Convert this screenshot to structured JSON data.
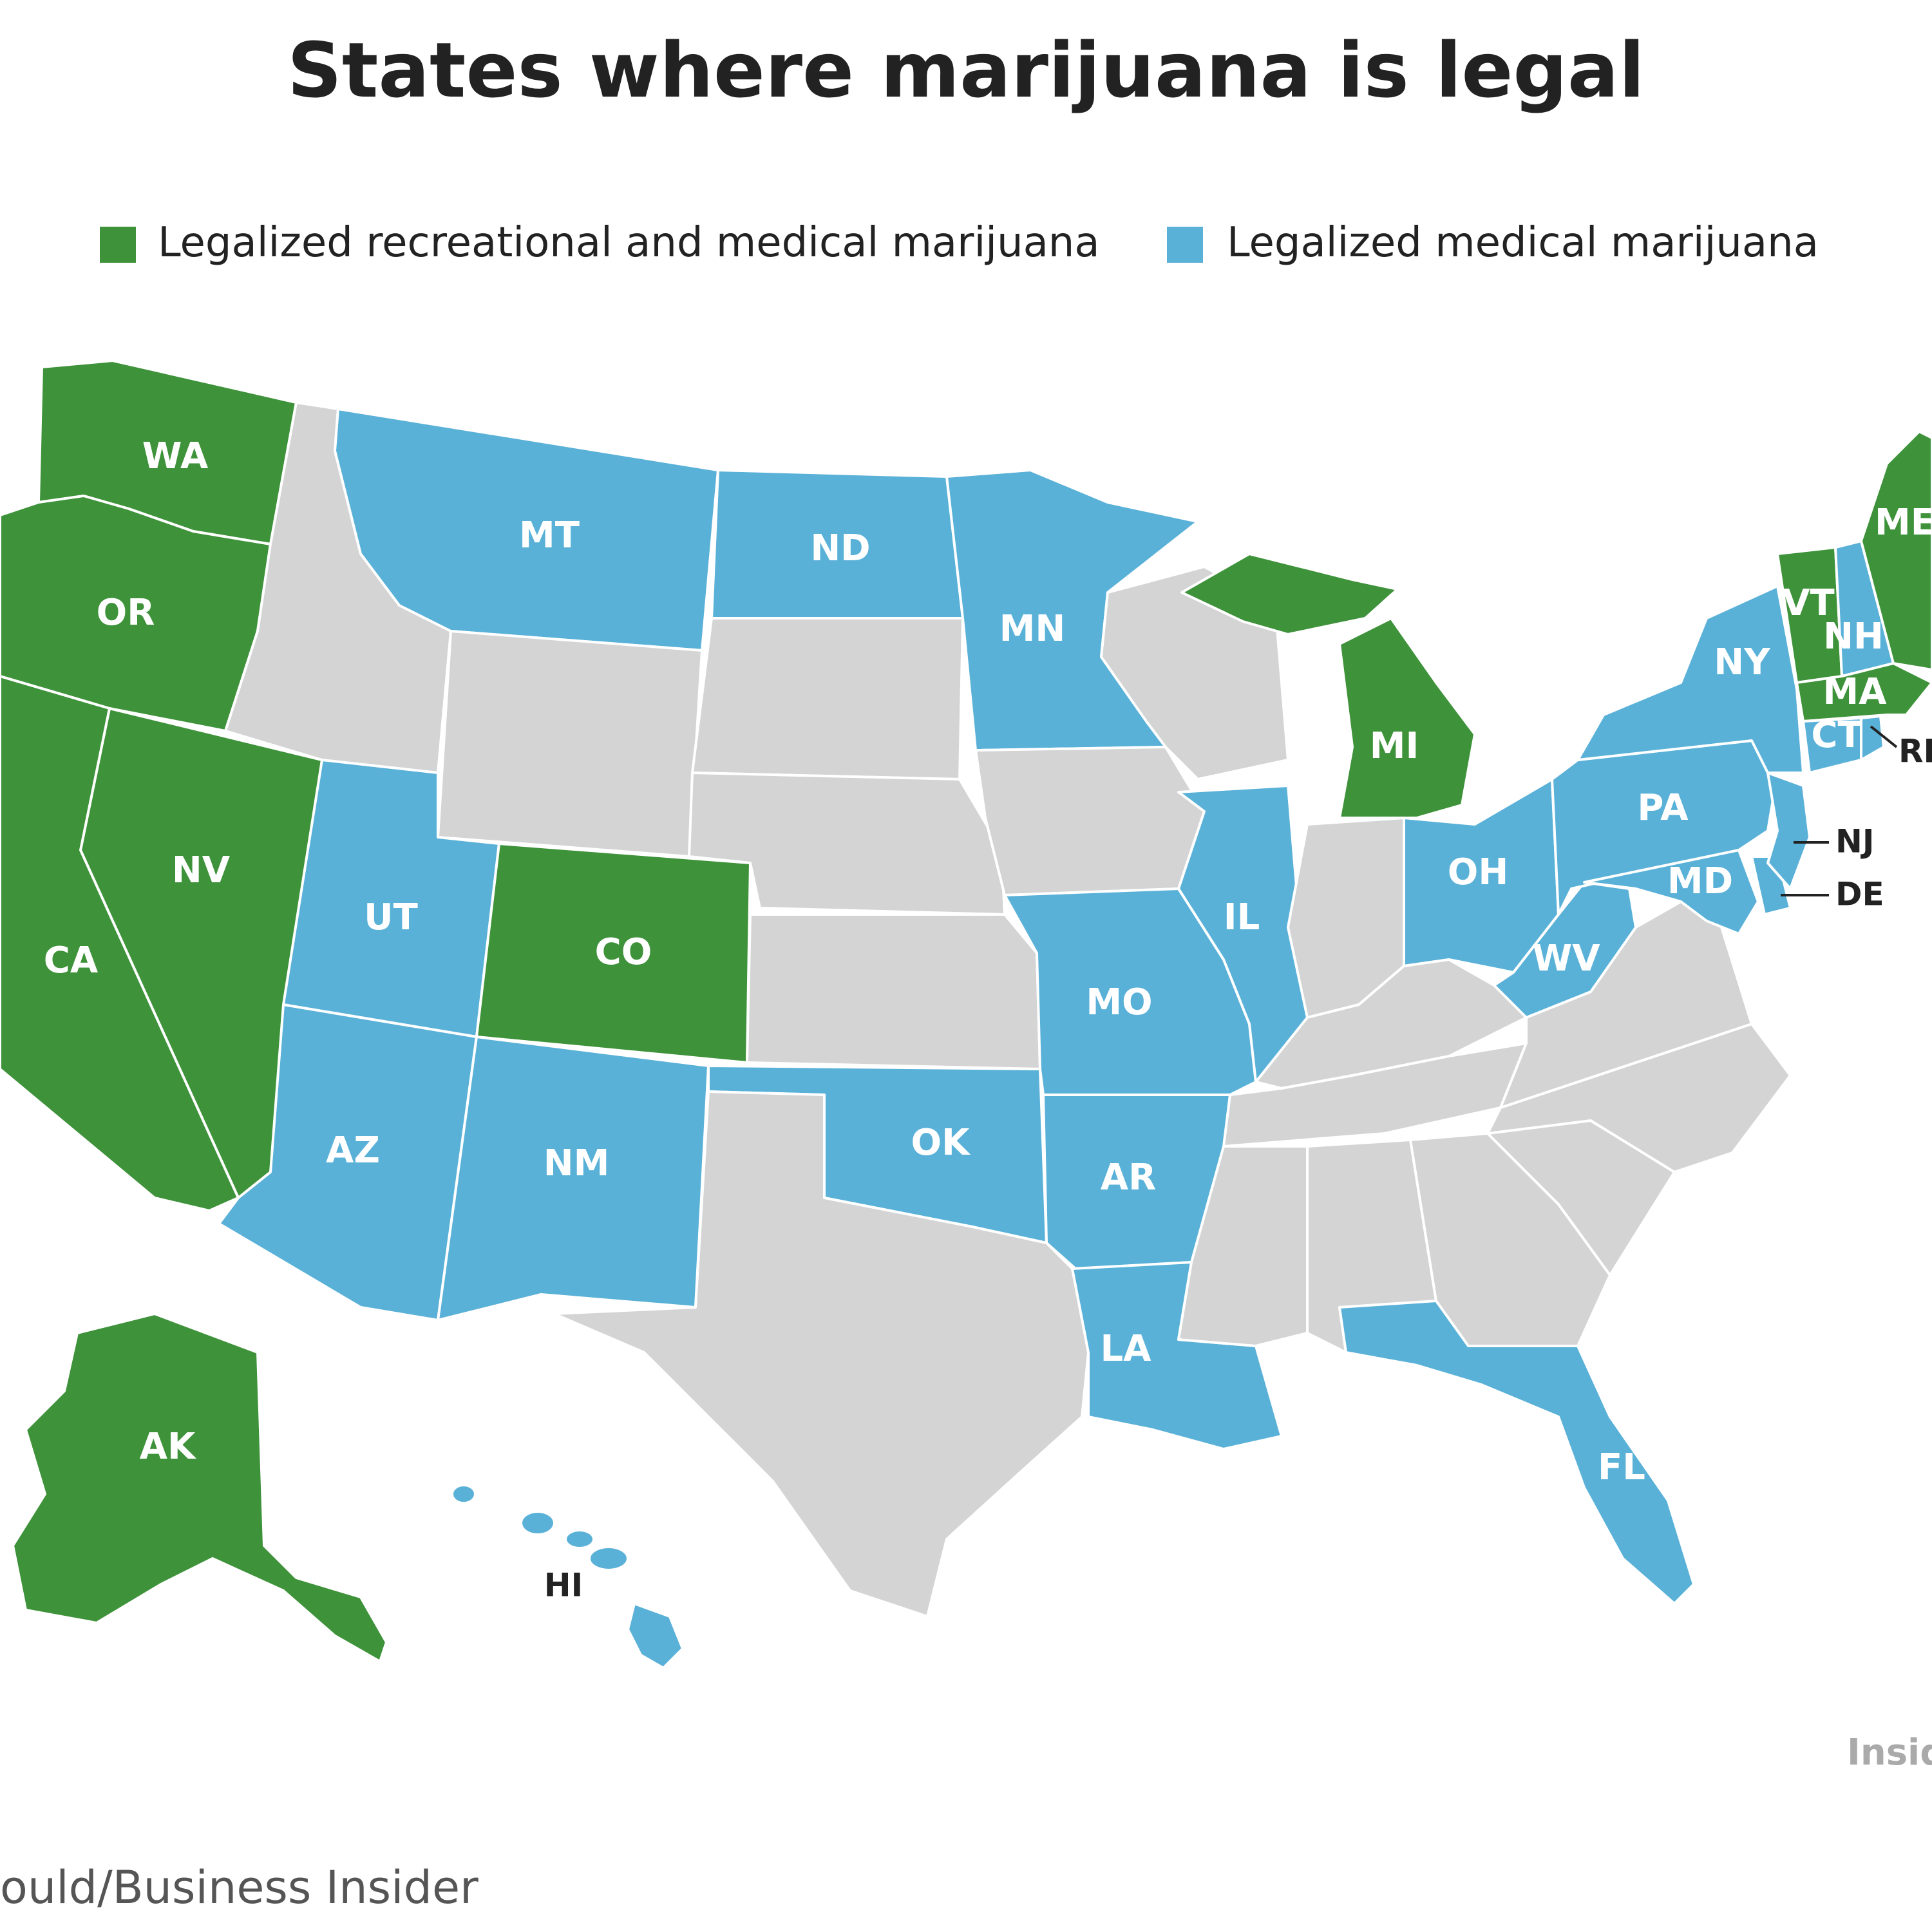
{
  "title": "States where marijuana is legal",
  "colors": {
    "recreational": "#3e923a",
    "medical": "#5ab1d8",
    "none": "#d4d4d4"
  },
  "legend": {
    "recreational": "Legalized recreational and medical marijuana",
    "medical": "Legalized medical marijuana"
  },
  "states": {
    "WA": "recreational",
    "OR": "recreational",
    "CA": "recreational",
    "NV": "recreational",
    "CO": "recreational",
    "AK": "recreational",
    "MI": "recreational",
    "VT": "recreational",
    "MA": "recreational",
    "ME": "recreational",
    "MT": "medical",
    "ND": "medical",
    "MN": "medical",
    "UT": "medical",
    "AZ": "medical",
    "NM": "medical",
    "OK": "medical",
    "AR": "medical",
    "MO": "medical",
    "LA": "medical",
    "IL": "medical",
    "OH": "medical",
    "WV": "medical",
    "PA": "medical",
    "NY": "medical",
    "NJ": "medical",
    "DE": "medical",
    "MD": "medical",
    "CT": "medical",
    "RI": "medical",
    "NH": "medical",
    "FL": "medical",
    "HI": "medical",
    "ID": "none",
    "WY": "none",
    "SD": "none",
    "NE": "none",
    "KS": "none",
    "TX": "none",
    "IA": "none",
    "WI": "none",
    "IN": "none",
    "KY": "none",
    "TN": "none",
    "MS": "none",
    "AL": "none",
    "GA": "none",
    "SC": "none",
    "NC": "none",
    "VA": "none"
  },
  "labels": {
    "WA": "WA",
    "OR": "OR",
    "CA": "CA",
    "NV": "NV",
    "MT": "MT",
    "ND": "ND",
    "MN": "MN",
    "UT": "UT",
    "CO": "CO",
    "AZ": "AZ",
    "NM": "NM",
    "OK": "OK",
    "AR": "AR",
    "MO": "MO",
    "LA": "LA",
    "IL": "IL",
    "MI": "MI",
    "OH": "OH",
    "WV": "WV",
    "PA": "PA",
    "NY": "NY",
    "VT": "VT",
    "NH": "NH",
    "ME": "ME",
    "MA": "MA",
    "CT": "CT",
    "MD": "MD",
    "FL": "FL",
    "AK": "AK",
    "HI": "HI",
    "RI": "RI",
    "NJ": "NJ",
    "DE": "DE"
  },
  "credit": "ould/Business Insider",
  "logo": "Insid"
}
